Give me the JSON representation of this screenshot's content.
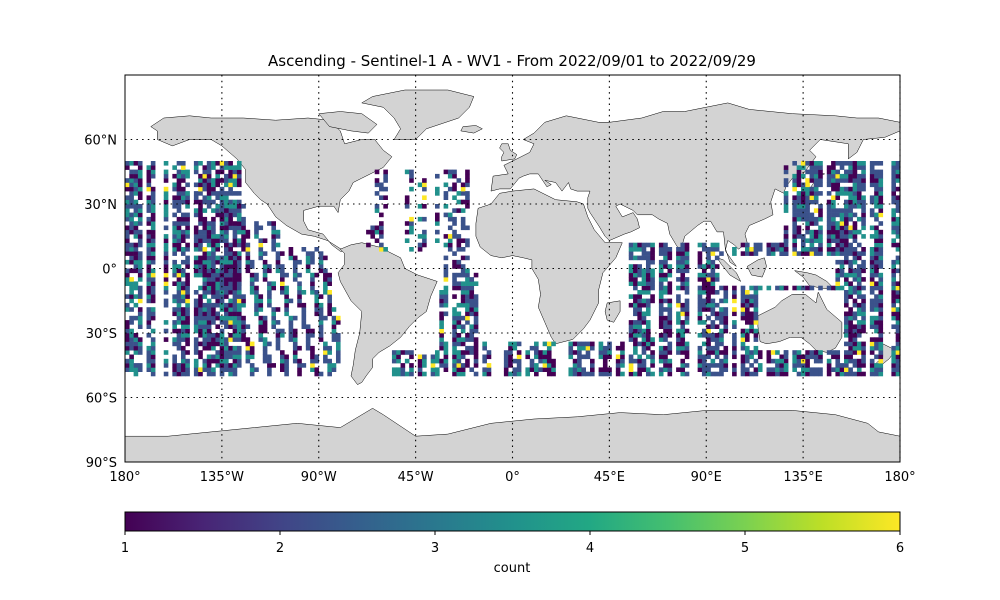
{
  "title": "Ascending - Sentinel-1 A - WV1 - From 2022/09/01 to 2022/09/29",
  "map": {
    "projection": "equirectangular",
    "lon_range": [
      -180,
      180
    ],
    "lat_range": [
      -90,
      90
    ],
    "gridlines": "dotted",
    "land_color": "#d3d3d3",
    "coast_color": "#000000",
    "lon_ticks": [
      {
        "value": -180,
        "label": "180°"
      },
      {
        "value": -135,
        "label": "135°W"
      },
      {
        "value": -90,
        "label": "90°W"
      },
      {
        "value": -45,
        "label": "45°W"
      },
      {
        "value": 0,
        "label": "0°"
      },
      {
        "value": 45,
        "label": "45°E"
      },
      {
        "value": 90,
        "label": "90°E"
      },
      {
        "value": 135,
        "label": "135°E"
      },
      {
        "value": 180,
        "label": "180°"
      }
    ],
    "lat_ticks": [
      {
        "value": 60,
        "label": "60°N"
      },
      {
        "value": 30,
        "label": "30°N"
      },
      {
        "value": 0,
        "label": "0°"
      },
      {
        "value": -30,
        "label": "30°S"
      },
      {
        "value": -60,
        "label": "60°S"
      },
      {
        "value": -90,
        "label": "90°S"
      }
    ]
  },
  "chart_data": {
    "type": "heatmap",
    "title": "Ascending - Sentinel-1 A - WV1 - From 2022/09/01 to 2022/09/29",
    "x_axis": "longitude",
    "y_axis": "latitude",
    "value_label": "count",
    "colormap": "viridis",
    "vmin": 1,
    "vmax": 6,
    "coverage_lat_range": [
      -50,
      50
    ],
    "coverage_regions": [
      {
        "region": "Eastern/Central Pacific",
        "lon_range": [
          -180,
          -120
        ],
        "lat_range": [
          -50,
          50
        ]
      },
      {
        "region": "Eastern Pacific oblique swaths",
        "lon_range": [
          -125,
          -80
        ],
        "lat_range": [
          -50,
          30
        ]
      },
      {
        "region": "North Atlantic",
        "lon_range": [
          -68,
          -20
        ],
        "lat_range": [
          0,
          45
        ]
      },
      {
        "region": "South Atlantic",
        "lon_range": [
          -58,
          20
        ],
        "lat_range": [
          -50,
          0
        ]
      },
      {
        "region": "Indian Ocean",
        "lon_range": [
          25,
          135
        ],
        "lat_range": [
          -50,
          20
        ]
      },
      {
        "region": "Western Pacific",
        "lon_range": [
          125,
          180
        ],
        "lat_range": [
          -50,
          50
        ]
      }
    ]
  },
  "colorbar": {
    "label": "count",
    "ticks": [
      1,
      2,
      3,
      4,
      5,
      6
    ],
    "tick_labels": [
      "1",
      "2",
      "3",
      "4",
      "5",
      "6"
    ]
  }
}
